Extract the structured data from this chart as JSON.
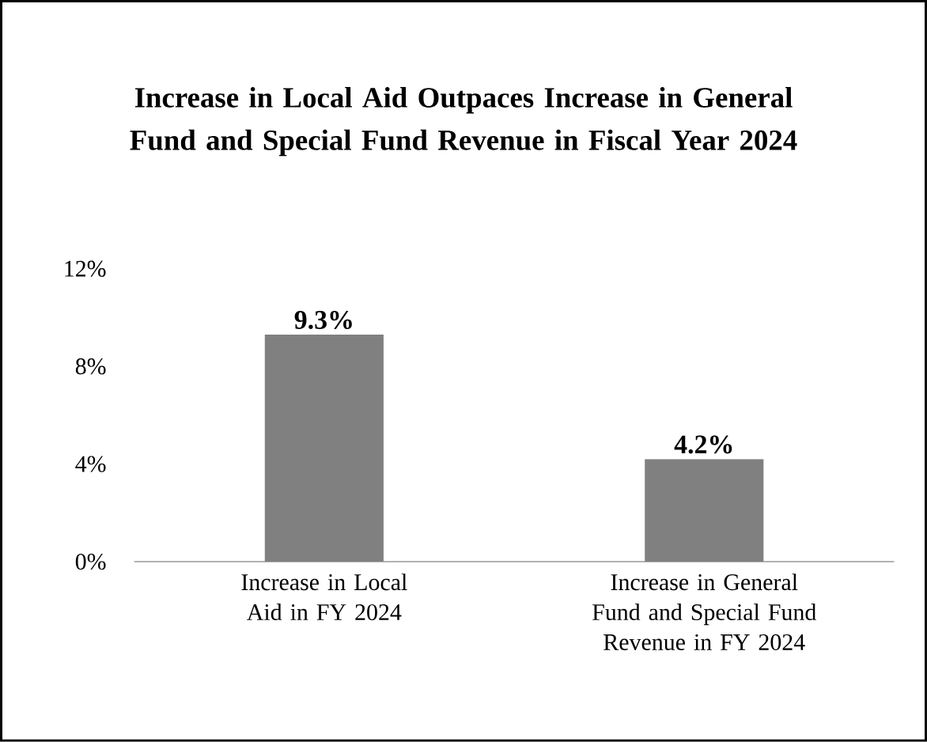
{
  "chart_data": {
    "type": "bar",
    "title": "Increase in Local Aid Outpaces Increase in General Fund and Special Fund Revenue in Fiscal Year 2024",
    "categories": [
      "Increase in Local Aid in FY 2024",
      "Increase in General Fund and Special Fund Revenue in FY 2024"
    ],
    "values": [
      9.3,
      4.2
    ],
    "value_labels": [
      "9.3%",
      "4.2%"
    ],
    "color": "#808080",
    "ylim": [
      0,
      12
    ],
    "yticks": [
      {
        "value": 0,
        "label": "0%"
      },
      {
        "value": 4,
        "label": "4%"
      },
      {
        "value": 8,
        "label": "8%"
      },
      {
        "value": 12,
        "label": "12%"
      }
    ],
    "grid": false
  }
}
